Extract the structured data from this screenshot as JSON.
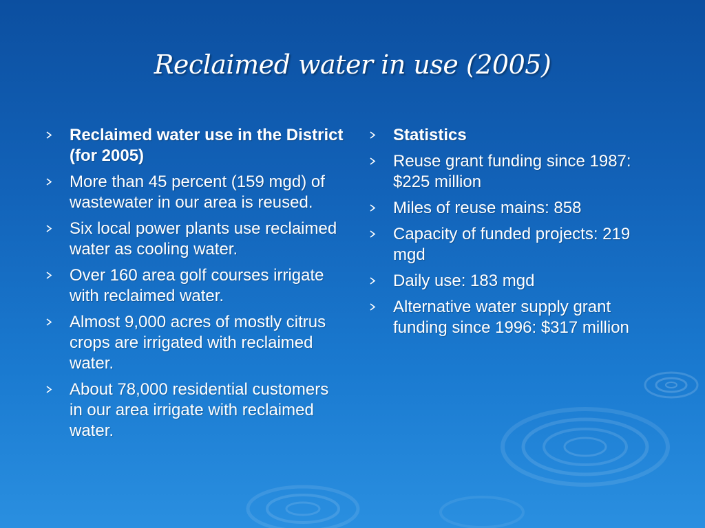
{
  "slide": {
    "title": "Reclaimed water in use (2005)",
    "bullet_icon": "chevron-right-icon",
    "colors": {
      "background_top": "#0c4fa0",
      "background_bottom": "#2a8fe0",
      "text": "#ffffff",
      "bullet": "#ffffff"
    },
    "left_column": [
      {
        "text": "Reclaimed water use in the District (for 2005)",
        "bold": true
      },
      {
        "text": "More than 45 percent (159 mgd) of wastewater in our area is reused.",
        "bold": false
      },
      {
        "text": "Six local power plants use reclaimed water as cooling water.",
        "bold": false
      },
      {
        "text": "Over 160 area golf courses irrigate with reclaimed water.",
        "bold": false
      },
      {
        "text": "Almost 9,000 acres of mostly citrus crops are irrigated with reclaimed water.",
        "bold": false
      },
      {
        "text": "About 78,000 residential customers in our area irrigate with reclaimed water.",
        "bold": false
      }
    ],
    "right_column": [
      {
        "text": "Statistics",
        "bold": true
      },
      {
        "text": "Reuse grant funding since 1987: $225 million",
        "bold": false
      },
      {
        "text": "Miles of reuse mains: 858",
        "bold": false
      },
      {
        "text": "Capacity of funded projects: 219 mgd",
        "bold": false
      },
      {
        "text": "Daily use: 183 mgd",
        "bold": false
      },
      {
        "text": "Alternative water supply grant funding since 1996: $317 million",
        "bold": false
      }
    ]
  }
}
